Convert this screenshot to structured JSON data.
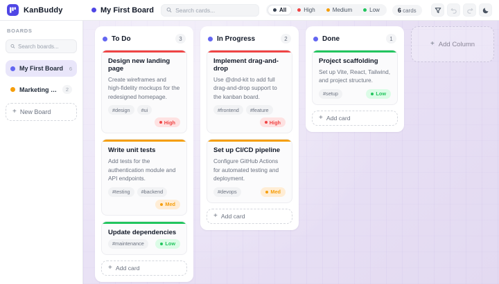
{
  "colors": {
    "accent": "#4f46e5",
    "high": "#ef4444",
    "high_bg": "#fee2e2",
    "med": "#f59e0b",
    "med_bg": "#ffedd5",
    "low": "#22c55e",
    "low_bg": "#dcfce7"
  },
  "header": {
    "app_name": "KanBuddy",
    "board_title": "My First Board",
    "search_placeholder": "Search cards...",
    "filters": [
      {
        "label": "All",
        "color": "#374151",
        "active": true
      },
      {
        "label": "High",
        "color": "#ef4444",
        "active": false
      },
      {
        "label": "Medium",
        "color": "#f59e0b",
        "active": false
      },
      {
        "label": "Low",
        "color": "#22c55e",
        "active": false
      }
    ],
    "cards_count": "6",
    "cards_count_suffix": " cards",
    "icons": {
      "filter": "filter",
      "undo": "undo",
      "redo": "redo",
      "theme": "moon"
    }
  },
  "sidebar": {
    "section_label": "BOARDS",
    "search_placeholder": "Search boards...",
    "boards": [
      {
        "name": "My First Board",
        "count": "6",
        "dot_color": "#6366f1",
        "active": true
      },
      {
        "name": "Marketing Camp...",
        "count": "2",
        "dot_color": "#f59e0b",
        "active": false
      }
    ],
    "new_board_label": "New Board"
  },
  "board": {
    "columns": [
      {
        "title": "To Do",
        "count": "3",
        "dot_color": "#6366f1",
        "add_card_label": "Add card",
        "cards": [
          {
            "title": "Design new landing page",
            "description": "Create wireframes and high-fidelity mockups for the redesigned homepage.",
            "tags": [
              "#design",
              "#ui"
            ],
            "priority": "High"
          },
          {
            "title": "Write unit tests",
            "description": "Add tests for the authentication module and API endpoints.",
            "tags": [
              "#testing",
              "#backend"
            ],
            "priority": "Med"
          },
          {
            "title": "Update dependencies",
            "description": "",
            "tags": [
              "#maintenance"
            ],
            "priority": "Low"
          }
        ]
      },
      {
        "title": "In Progress",
        "count": "2",
        "dot_color": "#6366f1",
        "add_card_label": "Add card",
        "cards": [
          {
            "title": "Implement drag-and-drop",
            "description": "Use @dnd-kit to add full drag-and-drop support to the kanban board.",
            "tags": [
              "#frontend",
              "#feature"
            ],
            "priority": "High"
          },
          {
            "title": "Set up CI/CD pipeline",
            "description": "Configure GitHub Actions for automated testing and deployment.",
            "tags": [
              "#devops"
            ],
            "priority": "Med"
          }
        ]
      },
      {
        "title": "Done",
        "count": "1",
        "dot_color": "#6366f1",
        "add_card_label": "Add card",
        "cards": [
          {
            "title": "Project scaffolding",
            "description": "Set up Vite, React, Tailwind, and project structure.",
            "tags": [
              "#setup"
            ],
            "priority": "Low"
          }
        ]
      }
    ],
    "add_column_label": "Add Column"
  },
  "glyphs": {
    "plus": "+"
  }
}
